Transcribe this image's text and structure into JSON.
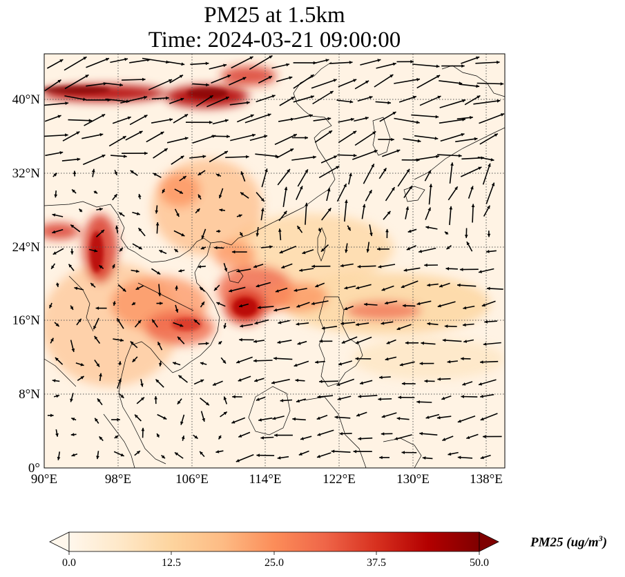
{
  "title": {
    "line1": "PM25 at 1.5km",
    "line2": "Time: 2024-03-21 09:00:00"
  },
  "map": {
    "lon_range": [
      90,
      140
    ],
    "lat_range": [
      0,
      45
    ],
    "lon_ticks": [
      "90°E",
      "98°E",
      "106°E",
      "114°E",
      "122°E",
      "130°E",
      "138°E"
    ],
    "lat_ticks": [
      "0°",
      "8°N",
      "16°N",
      "24°N",
      "32°N",
      "40°N"
    ],
    "gridlines": true,
    "colormap": "OrRd",
    "wind_vectors": true
  },
  "colorbar": {
    "ticks": [
      "0.0",
      "12.5",
      "25.0",
      "37.5",
      "50.0"
    ],
    "label": "PM25 (ug/m",
    "label_sup": "3",
    "label_end": ")",
    "min": 0.0,
    "max": 50.0,
    "extend": "both",
    "colors": [
      "#fff7ec",
      "#fee8c8",
      "#fdd49e",
      "#fdbb84",
      "#fc8d59",
      "#ef6548",
      "#d7301f",
      "#b30000",
      "#7f0000"
    ]
  }
}
